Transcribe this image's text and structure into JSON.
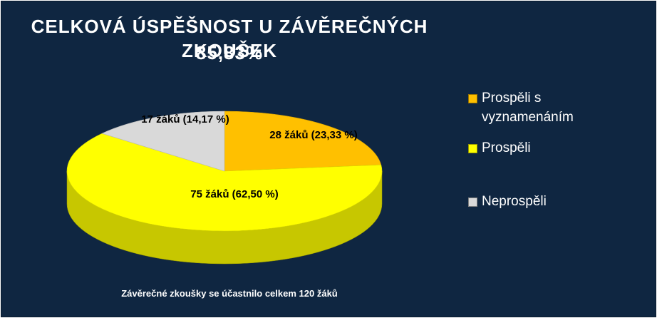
{
  "chart_data": {
    "type": "pie",
    "title": "CELKOVÁ ÚSPĚŠNOST U ZÁVĚREČNÝCH ZKOUŠEK",
    "subtitle": "85,83%",
    "slices": [
      {
        "name": "Prospěli s vyznamenáním",
        "value": 28,
        "percent": 23.33,
        "label": "28 žáků (23,33 %)",
        "color": "#ffc000"
      },
      {
        "name": "Prospěli",
        "value": 75,
        "percent": 62.5,
        "label": "75 žáků (62,50 %)",
        "color": "#ffff00"
      },
      {
        "name": "Neprospěli",
        "value": 17,
        "percent": 14.17,
        "label": "17 žáků (14,17 %)",
        "color": "#d9d9d9"
      }
    ],
    "legend": {
      "position": "right",
      "items": [
        {
          "line1": "Prospěli s",
          "line2": "vyznamenáním",
          "color": "#ffc000"
        },
        {
          "line1": "Prospěli",
          "line2": "",
          "color": "#ffff00"
        },
        {
          "line1": "Neprospěli",
          "line2": "",
          "color": "#d9d9d9"
        }
      ]
    },
    "footnote": "Závěrečné zkoušky se účastnilo celkem 120 žáků"
  },
  "colors": {
    "background": "#0f2641",
    "text": "#ffffff"
  }
}
